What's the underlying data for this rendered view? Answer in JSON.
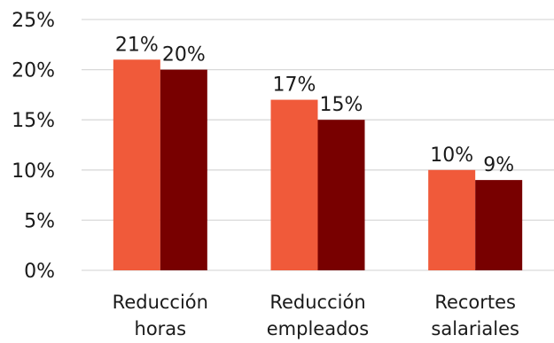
{
  "chart_data": {
    "type": "bar",
    "title": "",
    "xlabel": "",
    "ylabel": "",
    "categories": [
      [
        "Reducción",
        "horas"
      ],
      [
        "Reducción",
        "empleados"
      ],
      [
        "Recortes",
        "salariales"
      ]
    ],
    "series": [
      {
        "values": [
          21,
          17,
          10
        ],
        "color": "#f05a3a"
      },
      {
        "values": [
          20,
          15,
          9
        ],
        "color": "#780000"
      }
    ],
    "data_labels": [
      [
        "21%",
        "17%",
        "10%"
      ],
      [
        "20%",
        "15%",
        "9%"
      ]
    ],
    "ylim": [
      0,
      25
    ],
    "yticks": [
      0,
      5,
      10,
      15,
      20,
      25
    ],
    "ytick_labels": [
      "0%",
      "5%",
      "10%",
      "15%",
      "20%",
      "25%"
    ],
    "grid": true,
    "legend": "none"
  }
}
